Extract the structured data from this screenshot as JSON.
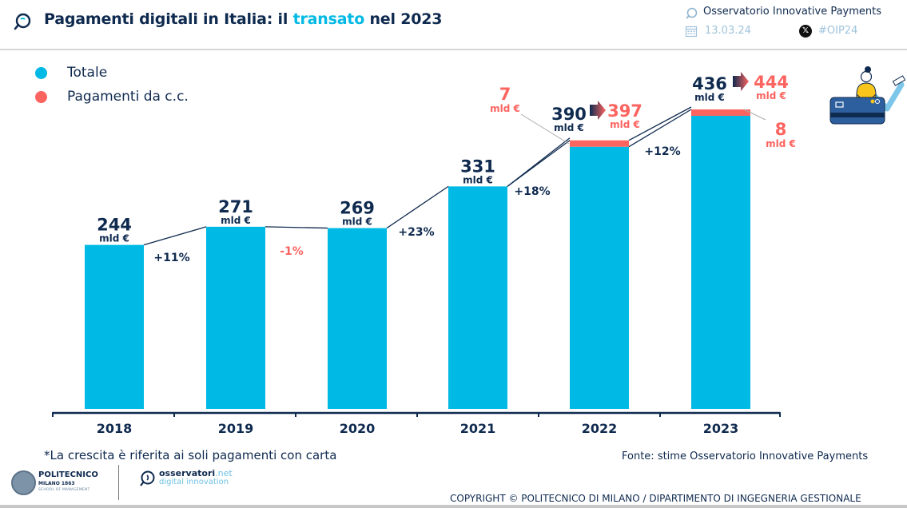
{
  "header": {
    "title_prefix": "Pagamenti digitali in Italia: il ",
    "title_highlight": "transato",
    "title_suffix": " nel 2023",
    "organization": "Osservatorio Innovative Payments",
    "date": "13.03.24",
    "hashtag": "#OIP24",
    "icons": [
      "search-bubble-icon",
      "calendar-icon",
      "x-logo-icon"
    ]
  },
  "legend": [
    {
      "label": "Totale",
      "color": "#00b9e4"
    },
    {
      "label": "Pagamenti da c.c.",
      "color": "#fc6460"
    }
  ],
  "colors": {
    "primary": "#00b9e4",
    "accent": "#fc6460",
    "dark": "#0f2a4f"
  },
  "chart_data": {
    "type": "bar",
    "title": "Pagamenti digitali in Italia: il transato nel 2023",
    "xlabel": "",
    "ylabel": "",
    "unit": "mld €",
    "categories": [
      "2018",
      "2019",
      "2020",
      "2021",
      "2022",
      "2023"
    ],
    "series": [
      {
        "name": "Totale",
        "values": [
          244,
          271,
          269,
          331,
          390,
          436
        ],
        "color": "#00b9e4"
      },
      {
        "name": "Pagamenti da c.c.",
        "values": [
          0,
          0,
          0,
          0,
          7,
          8
        ],
        "color": "#fc6460"
      }
    ],
    "value_labels": [
      "244",
      "271",
      "269",
      "331",
      "390",
      "436"
    ],
    "unit_label": "mld €",
    "totals_with_cc": [
      {
        "year": "2022",
        "value": "397",
        "unit": "mld €"
      },
      {
        "year": "2023",
        "value": "444",
        "unit": "mld €"
      }
    ],
    "cc_labels": [
      {
        "year": "2022",
        "value": "7",
        "unit": "mld €"
      },
      {
        "year": "2023",
        "value": "8",
        "unit": "mld €"
      }
    ],
    "growth": [
      {
        "label": "+11%",
        "negative": false
      },
      {
        "label": "-1%",
        "negative": true
      },
      {
        "label": "+23%",
        "negative": false
      },
      {
        "label": "+18%",
        "negative": false
      },
      {
        "label": "+12%",
        "negative": false
      }
    ],
    "ylim": [
      0,
      444
    ],
    "grid": false,
    "legend_position": "top-left"
  },
  "footer": {
    "note": "*La crescita è riferita ai soli pagamenti con carta",
    "source": "Fonte: stime Osservatorio Innovative Payments",
    "copyright": "COPYRIGHT © POLITECNICO DI MILANO / DIPARTIMENTO DI INGEGNERIA GESTIONALE",
    "logo_politecnico": {
      "name": "POLITECNICO",
      "sub": "MILANO 1863",
      "sub2": "SCHOOL OF MANAGEMENT"
    },
    "logo_osservatori": {
      "name": "osservatori",
      "tld": ".net",
      "sub": "digital innovation"
    }
  }
}
